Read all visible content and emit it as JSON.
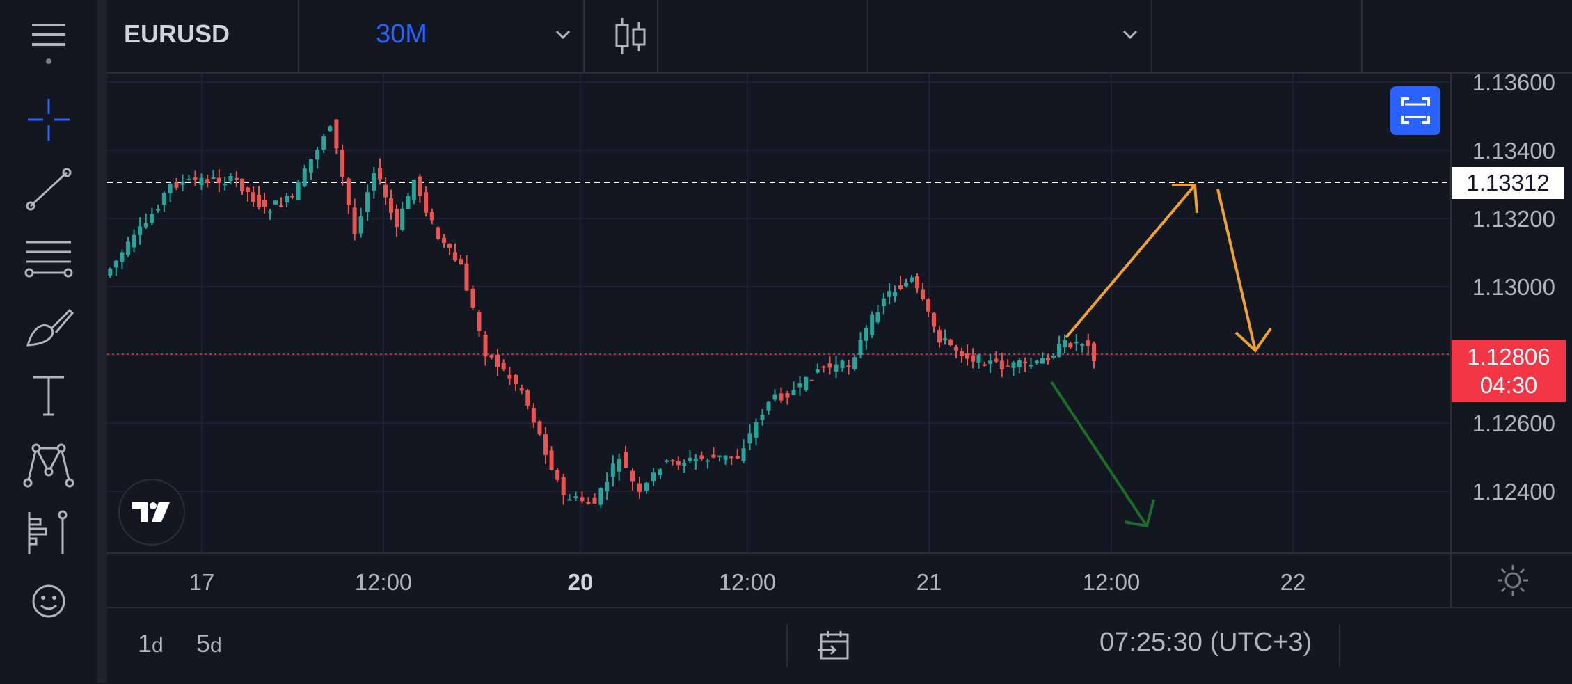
{
  "header": {
    "symbol": "EURUSD",
    "interval": "30M",
    "chart_type_icon": "candles-icon"
  },
  "toolbar": {
    "items": [
      "menu-icon",
      "crosshair-icon",
      "trend-line-icon",
      "fib-retracement-icon",
      "brush-icon",
      "text-icon",
      "pattern-icon",
      "forecast-icon",
      "emoji-icon"
    ]
  },
  "price_axis": {
    "ticks": [
      "1.13600",
      "1.13400",
      "1.13200",
      "1.13000",
      "1.12600",
      "1.12400"
    ],
    "marked_level": "1.13312",
    "last_price": "1.12806",
    "countdown": "04:30"
  },
  "time_axis": {
    "ticks": [
      {
        "label": "17",
        "bold": false
      },
      {
        "label": "12:00",
        "bold": false
      },
      {
        "label": "20",
        "bold": true
      },
      {
        "label": "12:00",
        "bold": false
      },
      {
        "label": "21",
        "bold": false
      },
      {
        "label": "12:00",
        "bold": false
      },
      {
        "label": "22",
        "bold": false
      }
    ]
  },
  "bottom_bar": {
    "range_1d_num": "1",
    "range_1d_unit": "d",
    "range_5d_num": "5",
    "range_5d_unit": "d",
    "clock": "07:25:30 (UTC+3)",
    "goto_icon": "calendar-goto-icon"
  },
  "colors": {
    "background": "#131722",
    "up": "#26a69a",
    "down": "#ef5350",
    "accent": "#2962ff",
    "arrow_orange": "#f0a22e",
    "arrow_green": "#1e6b2a"
  },
  "annotations": [
    "orange-up-arrow",
    "orange-down-arrow",
    "green-down-arrow"
  ]
}
